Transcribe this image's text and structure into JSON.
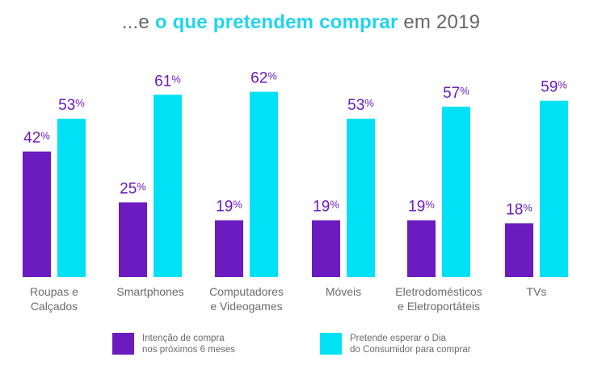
{
  "title": {
    "prefix": "...e ",
    "highlight": "o que pretendem comprar",
    "suffix": " em 2019"
  },
  "colors": {
    "series1": "#6b1bbf",
    "series2": "#00e1f5",
    "value_label": "#6b1bbf",
    "axis_label": "#6b6b6b",
    "title_text": "#666666",
    "title_highlight": "#1fd4ef"
  },
  "chart_data": {
    "type": "bar",
    "categories": [
      [
        "Roupas e",
        "Calçados"
      ],
      [
        "Smartphones"
      ],
      [
        "Computadores",
        "e Videogames"
      ],
      [
        "Móveis"
      ],
      [
        "Eletrodomésticos",
        "e Eletroportáteis"
      ],
      [
        "TVs"
      ]
    ],
    "series": [
      {
        "name": "Intenção de compra nos próximos 6 meses",
        "values": [
          42,
          25,
          19,
          19,
          19,
          18
        ]
      },
      {
        "name": "Pretende esperar o Dia do Consumidor para comprar",
        "values": [
          53,
          61,
          62,
          53,
          57,
          59
        ]
      }
    ],
    "value_suffix": "%",
    "ylim": [
      0,
      70
    ],
    "grid": false,
    "legend_position": "bottom"
  },
  "legend": [
    {
      "lines": [
        "Intenção de compra",
        "nos próximos 6 meses"
      ],
      "color": "#6b1bbf"
    },
    {
      "lines": [
        "Pretende esperar o Dia",
        "do Consumidor para comprar"
      ],
      "color": "#00e1f5"
    }
  ]
}
